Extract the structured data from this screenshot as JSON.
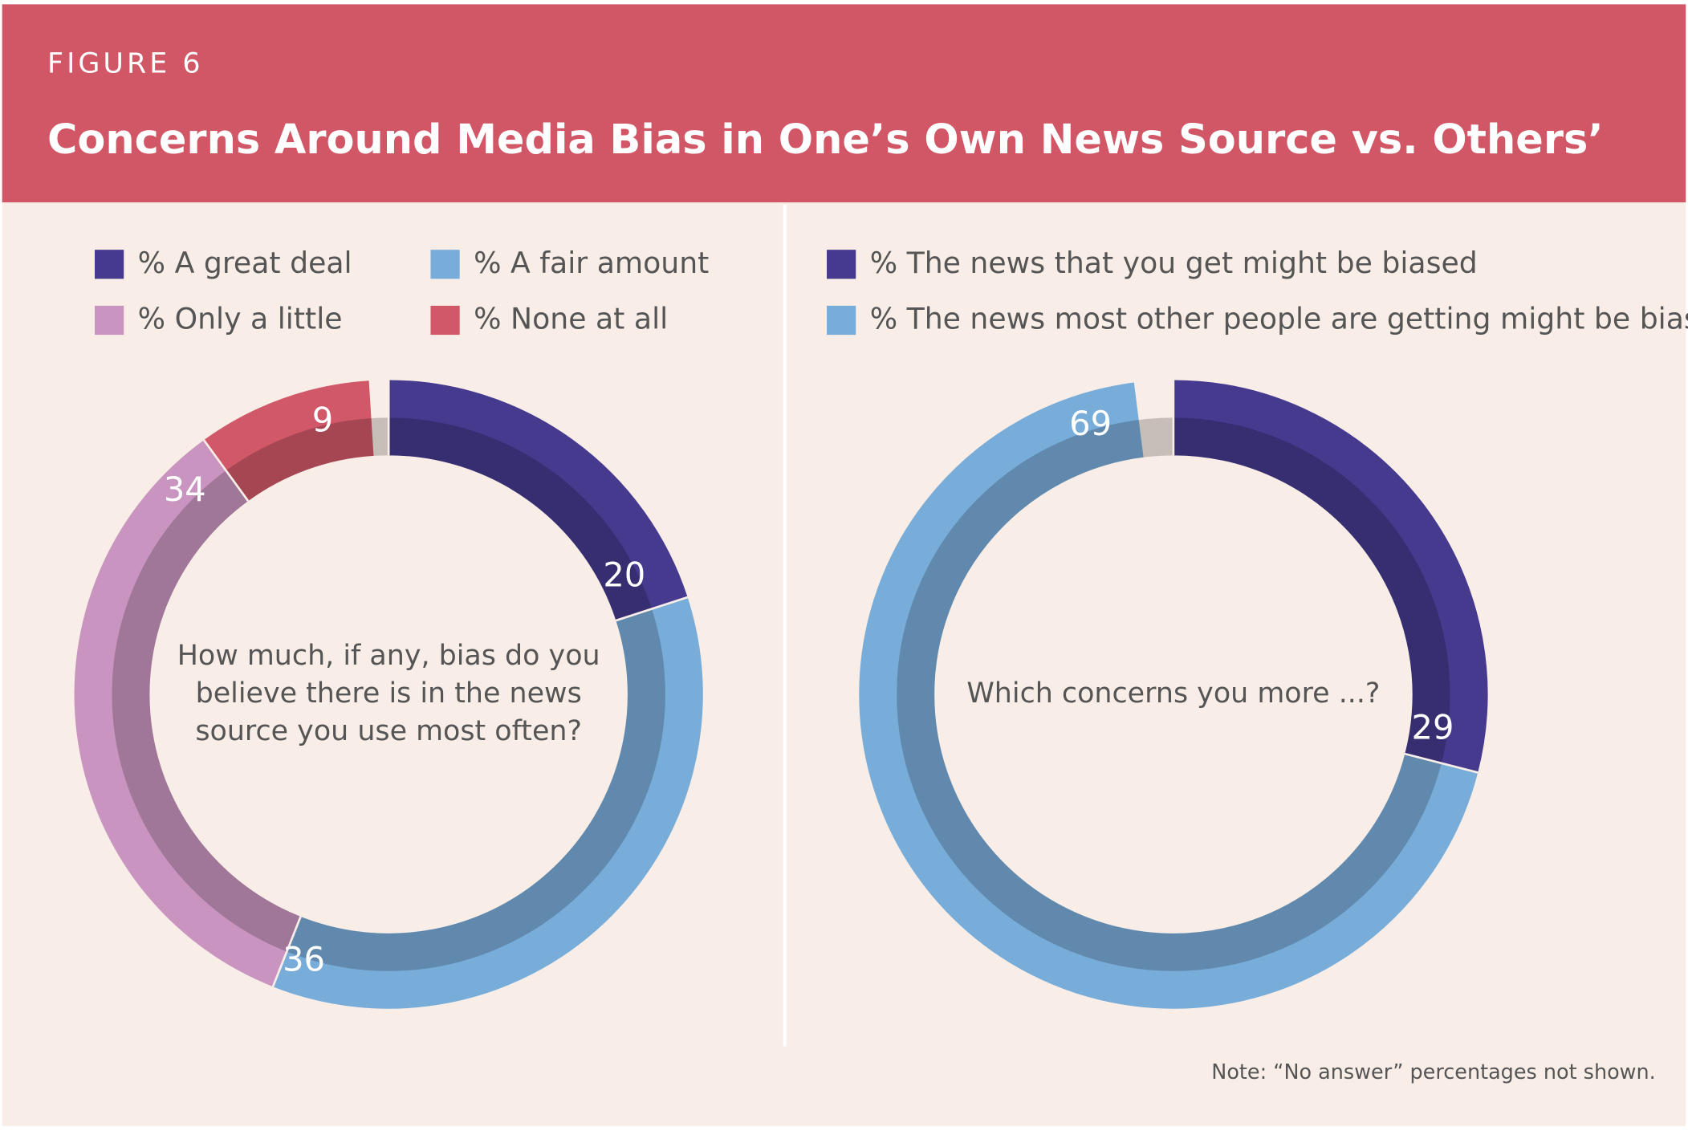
{
  "header": {
    "label": "FIGURE 6",
    "title": "Concerns Around Media Bias in One’s Own News Source vs. Others’"
  },
  "chart_data": [
    {
      "type": "donut",
      "question": [
        "How much, if any, bias do you",
        "believe there is in the news",
        "source you use most often?"
      ],
      "categories": [
        "% A great deal",
        "% A fair amount",
        "% Only a little",
        "% None at all"
      ],
      "values": [
        20,
        36,
        34,
        9
      ],
      "colors": [
        "#453a8e",
        "#78acd9",
        "#c994c0",
        "#d05868"
      ]
    },
    {
      "type": "donut",
      "question": [
        "Which concerns you more ...?"
      ],
      "categories": [
        "% The news that you get might be biased",
        "% The news most other people are getting might be biased"
      ],
      "values": [
        29,
        69
      ],
      "colors": [
        "#453a8e",
        "#78acd9"
      ]
    }
  ],
  "note": "Note: “No answer” percentages not shown."
}
